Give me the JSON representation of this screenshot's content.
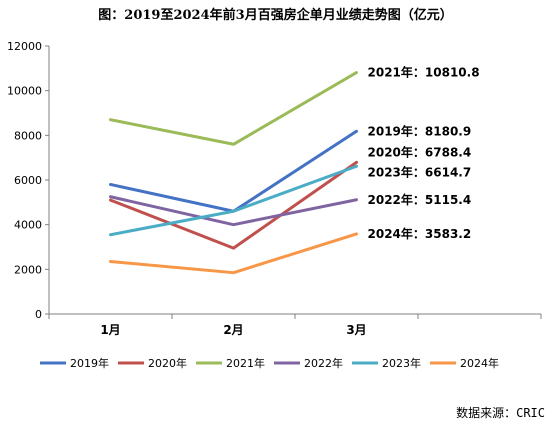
{
  "chart_data": {
    "type": "line",
    "title": "图：2019至2024年前3月百强房企单月业绩走势图（亿元）",
    "categories": [
      "1月",
      "2月",
      "3月"
    ],
    "ylim": [
      0,
      12000
    ],
    "yticks": [
      0,
      2000,
      4000,
      6000,
      8000,
      10000,
      12000
    ],
    "grid": false,
    "legend_position": "bottom",
    "series": [
      {
        "name": "2019年",
        "color": "#4472C4",
        "values": [
          5800,
          4600,
          8180.9
        ],
        "end_label": "2019年：8180.9"
      },
      {
        "name": "2020年",
        "color": "#C0504D",
        "values": [
          5100,
          2950,
          6788.4
        ],
        "end_label": "2020年：6788.4"
      },
      {
        "name": "2021年",
        "color": "#9BBB59",
        "values": [
          8700,
          7600,
          10810.8
        ],
        "end_label": "2021年：10810.8"
      },
      {
        "name": "2022年",
        "color": "#8064A2",
        "values": [
          5250,
          4000,
          5115.4
        ],
        "end_label": "2022年：5115.4"
      },
      {
        "name": "2023年",
        "color": "#4BACC6",
        "values": [
          3550,
          4600,
          6614.7
        ],
        "end_label": "2023年：6614.7"
      },
      {
        "name": "2024年",
        "color": "#F79646",
        "values": [
          2350,
          1850,
          3583.2
        ],
        "end_label": "2024年：3583.2"
      }
    ]
  },
  "source": "数据来源：CRIC"
}
